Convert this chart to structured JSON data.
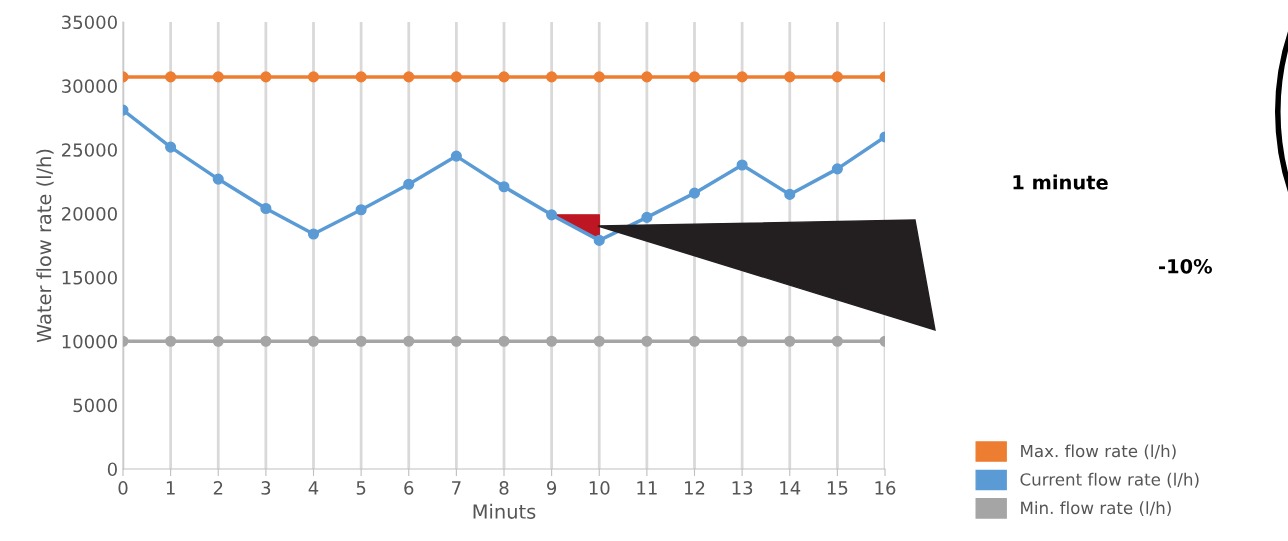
{
  "chart_data": {
    "type": "line",
    "xlabel": "Minuts",
    "ylabel": "Water flow rate (l/h)",
    "x": [
      0,
      1,
      2,
      3,
      4,
      5,
      6,
      7,
      8,
      9,
      10,
      11,
      12,
      13,
      14,
      15,
      16
    ],
    "series": [
      {
        "name": "Max. flow rate (l/h)",
        "color": "#ed7d31",
        "values": [
          30700,
          30700,
          30700,
          30700,
          30700,
          30700,
          30700,
          30700,
          30700,
          30700,
          30700,
          30700,
          30700,
          30700,
          30700,
          30700,
          30700
        ]
      },
      {
        "name": "Current flow rate (l/h)",
        "color": "#5b9bd5",
        "values": [
          28100,
          25200,
          22700,
          20400,
          18400,
          20300,
          22300,
          24500,
          22100,
          19900,
          17900,
          19700,
          21600,
          23800,
          21500,
          23500,
          26000
        ]
      },
      {
        "name": "Min. flow rate (l/h)",
        "color": "#a5a5a5",
        "values": [
          10000,
          10000,
          10000,
          10000,
          10000,
          10000,
          10000,
          10000,
          10000,
          10000,
          10000,
          10000,
          10000,
          10000,
          10000,
          10000,
          10000
        ]
      }
    ],
    "xlim": [
      0,
      16
    ],
    "xticks": [
      0,
      1,
      2,
      3,
      4,
      5,
      6,
      7,
      8,
      9,
      10,
      11,
      12,
      13,
      14,
      15,
      16
    ],
    "ylim": [
      0,
      35000
    ],
    "yticks": [
      0,
      5000,
      10000,
      15000,
      20000,
      25000,
      30000,
      35000
    ],
    "grid": "x",
    "marker": "circle",
    "legend": "bottom right",
    "annotations": [
      "1 minute",
      "-10%"
    ]
  }
}
